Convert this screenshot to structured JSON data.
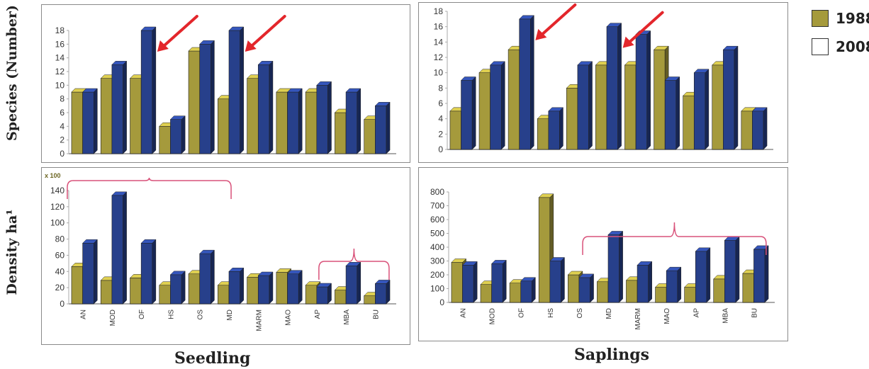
{
  "legend": {
    "items": [
      {
        "label": "1988",
        "color": "#a59a3c"
      },
      {
        "label": "2008",
        "color": "#ffffff"
      }
    ]
  },
  "y_labels": {
    "species": "Species (Number)",
    "density": "Density ha¹"
  },
  "x_labels": {
    "seedling": "Seedling",
    "saplings": "Saplings"
  },
  "colors": {
    "s1988": "#a59a3c",
    "s2008": "#27408b",
    "arrow": "#e3262b",
    "brace": "#d9527a",
    "grid": "#aaaaaa"
  },
  "chart_data": [
    {
      "id": "seedling-species",
      "type": "bar",
      "categories": [
        "AN",
        "MOD",
        "OF",
        "HS",
        "OS",
        "MD",
        "MARM",
        "MAO",
        "AP",
        "MBA",
        "BU"
      ],
      "series": [
        {
          "name": "1988",
          "values": [
            9,
            11,
            11,
            4,
            15,
            8,
            11,
            9,
            9,
            6,
            5
          ]
        },
        {
          "name": "2008",
          "values": [
            9,
            13,
            18,
            5,
            16,
            18,
            13,
            9,
            10,
            9,
            7
          ]
        }
      ],
      "ylim": [
        0,
        18
      ],
      "yticks": [
        0,
        2,
        4,
        6,
        8,
        10,
        12,
        14,
        16,
        18
      ],
      "show_xticks": false,
      "arrows_at": [
        2,
        5
      ]
    },
    {
      "id": "saplings-species",
      "type": "bar",
      "categories": [
        "AN",
        "MOD",
        "OF",
        "HS",
        "OS",
        "MD",
        "MARM",
        "MAO",
        "AP",
        "MBA",
        "BU"
      ],
      "series": [
        {
          "name": "1988",
          "values": [
            5,
            10,
            13,
            4,
            8,
            11,
            11,
            13,
            7,
            11,
            5
          ]
        },
        {
          "name": "2008",
          "values": [
            9,
            11,
            17,
            5,
            11,
            16,
            15,
            9,
            10,
            13,
            5
          ]
        }
      ],
      "ylim": [
        0,
        18
      ],
      "yticks": [
        0,
        2,
        4,
        6,
        8,
        10,
        12,
        14,
        16,
        18
      ],
      "show_xticks": false,
      "arrows_at": [
        2,
        5
      ]
    },
    {
      "id": "seedling-density",
      "type": "bar",
      "categories": [
        "AN",
        "MOD",
        "OF",
        "HS",
        "OS",
        "MD",
        "MARM",
        "MAO",
        "AP",
        "MBA",
        "BU"
      ],
      "series": [
        {
          "name": "1988",
          "values": [
            46,
            29,
            32,
            23,
            37,
            23,
            33,
            39,
            23,
            17,
            10
          ]
        },
        {
          "name": "2008",
          "values": [
            75,
            134,
            75,
            36,
            62,
            40,
            35,
            37,
            21,
            47,
            25
          ]
        }
      ],
      "ylim": [
        0,
        140
      ],
      "yticks": [
        0,
        20,
        40,
        60,
        80,
        100,
        120,
        140
      ],
      "unit_label": "x 100",
      "show_xticks": true
    },
    {
      "id": "saplings-density",
      "type": "bar",
      "categories": [
        "AN",
        "MOD",
        "OF",
        "HS",
        "OS",
        "MD",
        "MARM",
        "MAO",
        "AP",
        "MBA",
        "BU"
      ],
      "series": [
        {
          "name": "1988",
          "values": [
            290,
            130,
            140,
            760,
            200,
            150,
            160,
            110,
            110,
            170,
            210
          ]
        },
        {
          "name": "2008",
          "values": [
            270,
            280,
            155,
            300,
            180,
            490,
            270,
            230,
            370,
            450,
            385
          ]
        }
      ],
      "ylim": [
        0,
        800
      ],
      "yticks": [
        0,
        100,
        200,
        300,
        400,
        500,
        600,
        700,
        800
      ],
      "show_xticks": true
    }
  ]
}
